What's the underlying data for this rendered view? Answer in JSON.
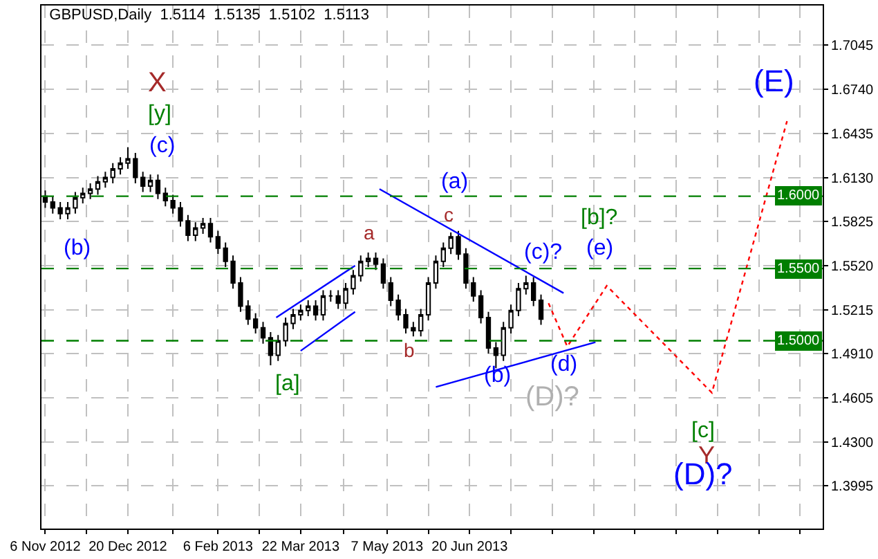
{
  "chart_data": {
    "type": "candlestick",
    "title": "GBPUSD,Daily  1.5114  1.5135  1.5102  1.5113",
    "x": [
      "2012-11-06",
      "2012-11-10",
      "2012-11-14",
      "2012-11-18",
      "2012-11-22",
      "2012-11-26",
      "2012-11-30",
      "2012-12-04",
      "2012-12-08",
      "2012-12-12",
      "2012-12-16",
      "2012-12-20",
      "2012-12-24",
      "2012-12-28",
      "2013-01-01",
      "2013-01-05",
      "2013-01-09",
      "2013-01-13",
      "2013-01-17",
      "2013-01-21",
      "2013-01-25",
      "2013-01-29",
      "2013-02-02",
      "2013-02-06",
      "2013-02-10",
      "2013-02-14",
      "2013-02-18",
      "2013-02-22",
      "2013-02-26",
      "2013-03-02",
      "2013-03-06",
      "2013-03-10",
      "2013-03-14",
      "2013-03-18",
      "2013-03-22",
      "2013-03-26",
      "2013-03-30",
      "2013-04-03",
      "2013-04-07",
      "2013-04-11",
      "2013-04-15",
      "2013-04-19",
      "2013-04-23",
      "2013-04-27",
      "2013-05-01",
      "2013-05-05",
      "2013-05-09",
      "2013-05-13",
      "2013-05-17",
      "2013-05-21",
      "2013-05-25",
      "2013-05-29",
      "2013-06-02",
      "2013-06-06",
      "2013-06-10",
      "2013-06-14",
      "2013-06-18",
      "2013-06-22",
      "2013-06-26",
      "2013-06-30",
      "2013-07-04",
      "2013-07-08",
      "2013-07-12",
      "2013-07-16",
      "2013-07-20",
      "2013-07-24",
      "2013-07-28"
    ],
    "ohlc": [
      [
        1.6,
        1.604,
        1.592,
        1.596
      ],
      [
        1.596,
        1.6,
        1.588,
        1.592
      ],
      [
        1.592,
        1.596,
        1.584,
        1.588
      ],
      [
        1.588,
        1.596,
        1.584,
        1.592
      ],
      [
        1.592,
        1.603,
        1.588,
        1.599
      ],
      [
        1.599,
        1.606,
        1.595,
        1.602
      ],
      [
        1.602,
        1.609,
        1.598,
        1.605
      ],
      [
        1.605,
        1.614,
        1.601,
        1.61
      ],
      [
        1.61,
        1.617,
        1.606,
        1.613
      ],
      [
        1.613,
        1.623,
        1.609,
        1.619
      ],
      [
        1.619,
        1.627,
        1.615,
        1.623
      ],
      [
        1.623,
        1.634,
        1.619,
        1.626
      ],
      [
        1.626,
        1.63,
        1.609,
        1.613
      ],
      [
        1.613,
        1.617,
        1.603,
        1.607
      ],
      [
        1.607,
        1.615,
        1.603,
        1.611
      ],
      [
        1.611,
        1.615,
        1.598,
        1.602
      ],
      [
        1.602,
        1.606,
        1.593,
        1.597
      ],
      [
        1.597,
        1.601,
        1.588,
        1.592
      ],
      [
        1.592,
        1.596,
        1.579,
        1.583
      ],
      [
        1.583,
        1.587,
        1.569,
        1.573
      ],
      [
        1.573,
        1.582,
        1.569,
        1.578
      ],
      [
        1.578,
        1.585,
        1.574,
        1.581
      ],
      [
        1.581,
        1.585,
        1.568,
        1.572
      ],
      [
        1.572,
        1.576,
        1.56,
        1.564
      ],
      [
        1.564,
        1.568,
        1.551,
        1.555
      ],
      [
        1.555,
        1.559,
        1.536,
        1.54
      ],
      [
        1.54,
        1.544,
        1.52,
        1.524
      ],
      [
        1.524,
        1.528,
        1.511,
        1.515
      ],
      [
        1.515,
        1.519,
        1.505,
        1.509
      ],
      [
        1.509,
        1.513,
        1.498,
        1.502
      ],
      [
        1.502,
        1.506,
        1.483,
        1.49
      ],
      [
        1.49,
        1.504,
        1.486,
        1.5
      ],
      [
        1.5,
        1.516,
        1.496,
        1.512
      ],
      [
        1.512,
        1.522,
        1.508,
        1.518
      ],
      [
        1.518,
        1.525,
        1.514,
        1.521
      ],
      [
        1.521,
        1.528,
        1.517,
        1.524
      ],
      [
        1.524,
        1.528,
        1.514,
        1.518
      ],
      [
        1.518,
        1.535,
        1.514,
        1.531
      ],
      [
        1.531,
        1.535,
        1.527,
        1.531
      ],
      [
        1.531,
        1.535,
        1.522,
        1.526
      ],
      [
        1.526,
        1.54,
        1.522,
        1.536
      ],
      [
        1.536,
        1.549,
        1.532,
        1.545
      ],
      [
        1.545,
        1.559,
        1.541,
        1.555
      ],
      [
        1.555,
        1.561,
        1.551,
        1.557
      ],
      [
        1.557,
        1.561,
        1.549,
        1.553
      ],
      [
        1.553,
        1.557,
        1.536,
        1.54
      ],
      [
        1.54,
        1.544,
        1.524,
        1.528
      ],
      [
        1.528,
        1.532,
        1.514,
        1.518
      ],
      [
        1.518,
        1.522,
        1.505,
        1.509
      ],
      [
        1.509,
        1.513,
        1.503,
        1.507
      ],
      [
        1.507,
        1.522,
        1.503,
        1.518
      ],
      [
        1.518,
        1.544,
        1.514,
        1.54
      ],
      [
        1.54,
        1.559,
        1.536,
        1.555
      ],
      [
        1.555,
        1.568,
        1.551,
        1.564
      ],
      [
        1.564,
        1.575,
        1.56,
        1.572
      ],
      [
        1.572,
        1.576,
        1.556,
        1.56
      ],
      [
        1.56,
        1.564,
        1.536,
        1.54
      ],
      [
        1.54,
        1.544,
        1.527,
        1.531
      ],
      [
        1.531,
        1.535,
        1.512,
        1.516
      ],
      [
        1.516,
        1.52,
        1.491,
        1.495
      ],
      [
        1.495,
        1.499,
        1.481,
        1.49
      ],
      [
        1.49,
        1.513,
        1.486,
        1.509
      ],
      [
        1.509,
        1.525,
        1.505,
        1.521
      ],
      [
        1.521,
        1.54,
        1.517,
        1.536
      ],
      [
        1.536,
        1.545,
        1.532,
        1.54
      ],
      [
        1.54,
        1.544,
        1.524,
        1.528
      ],
      [
        1.528,
        1.532,
        1.511,
        1.515
      ]
    ],
    "color": "#000000",
    "series": [
      {
        "type": "line",
        "color": "#ff0000",
        "line_style": "dotted",
        "x": [
          "2013-08-01",
          "2013-08-11",
          "2013-09-01",
          "2013-10-27",
          "2013-12-06"
        ],
        "values": [
          1.526,
          1.496,
          1.538,
          1.464,
          1.652
        ]
      },
      {
        "type": "line",
        "color": "#0000ff",
        "line_style": "solid",
        "x": [
          "2013-03-09",
          "2013-04-20"
        ],
        "values": [
          1.516,
          1.552
        ]
      },
      {
        "type": "line",
        "color": "#0000ff",
        "line_style": "solid",
        "x": [
          "2013-03-22",
          "2013-04-20"
        ],
        "values": [
          1.493,
          1.52
        ]
      },
      {
        "type": "line",
        "color": "#0000ff",
        "line_style": "solid",
        "x": [
          "2013-05-03",
          "2013-08-09"
        ],
        "values": [
          1.605,
          1.533
        ]
      },
      {
        "type": "line",
        "color": "#0000ff",
        "line_style": "solid",
        "x": [
          "2013-06-02",
          "2013-08-26"
        ],
        "values": [
          1.468,
          1.499
        ]
      }
    ],
    "ref_lines": [
      {
        "axis": "y",
        "value": 1.6,
        "label": "1.6000",
        "color": "#007f00",
        "line_style": "dashed"
      },
      {
        "axis": "y",
        "value": 1.55,
        "label": "1.5500",
        "color": "#007f00",
        "line_style": "dashed"
      },
      {
        "axis": "y",
        "value": 1.5,
        "label": "1.5000",
        "color": "#007f00",
        "line_style": "dashed"
      }
    ],
    "annotations": [
      "X",
      "[y]",
      "(c)",
      "(b)",
      "[a]",
      "a",
      "b",
      "c",
      "(a)",
      "(c)?",
      "[b]?",
      "(e)",
      "(d)",
      "(b)",
      "(D)?",
      "[c]",
      "Y",
      "(D)?",
      "(E)"
    ],
    "xlim": [
      "2012-11-04",
      "2013-12-25"
    ],
    "xticks": [
      {
        "value": "2012-11-06",
        "label": "6 Nov 2012"
      },
      {
        "value": "2012-11-28",
        "label": null
      },
      {
        "value": "2012-12-20",
        "label": "20 Dec 2012"
      },
      {
        "value": "2013-01-13",
        "label": null
      },
      {
        "value": "2013-02-06",
        "label": "6 Feb 2013"
      },
      {
        "value": "2013-02-28",
        "label": null
      },
      {
        "value": "2013-03-22",
        "label": "22 Mar 2013"
      },
      {
        "value": "2013-04-14",
        "label": null
      },
      {
        "value": "2013-05-07",
        "label": "7 May 2013"
      },
      {
        "value": "2013-05-29",
        "label": null
      },
      {
        "value": "2013-06-20",
        "label": "20 Jun 2013"
      },
      {
        "value": "2013-07-12",
        "label": null
      },
      {
        "value": "2013-08-03",
        "label": null
      },
      {
        "value": "2013-08-25",
        "label": null
      },
      {
        "value": "2013-09-16",
        "label": null
      },
      {
        "value": "2013-10-08",
        "label": null
      },
      {
        "value": "2013-10-30",
        "label": null
      },
      {
        "value": "2013-11-21",
        "label": null
      },
      {
        "value": "2013-12-13",
        "label": null
      }
    ],
    "ylim": [
      1.37,
      1.732
    ],
    "yticks": [
      {
        "value": 1.3995,
        "label": "1.3995"
      },
      {
        "value": 1.43,
        "label": "1.4300"
      },
      {
        "value": 1.4605,
        "label": "1.4605"
      },
      {
        "value": 1.491,
        "label": "1.4910"
      },
      {
        "value": 1.5215,
        "label": "1.5215"
      },
      {
        "value": 1.552,
        "label": "1.5520"
      },
      {
        "value": 1.5825,
        "label": "1.5825"
      },
      {
        "value": 1.613,
        "label": "1.6130"
      },
      {
        "value": 1.6435,
        "label": "1.6435"
      },
      {
        "value": 1.674,
        "label": "1.6740"
      },
      {
        "value": 1.7045,
        "label": "1.7045"
      }
    ],
    "grid": true
  }
}
